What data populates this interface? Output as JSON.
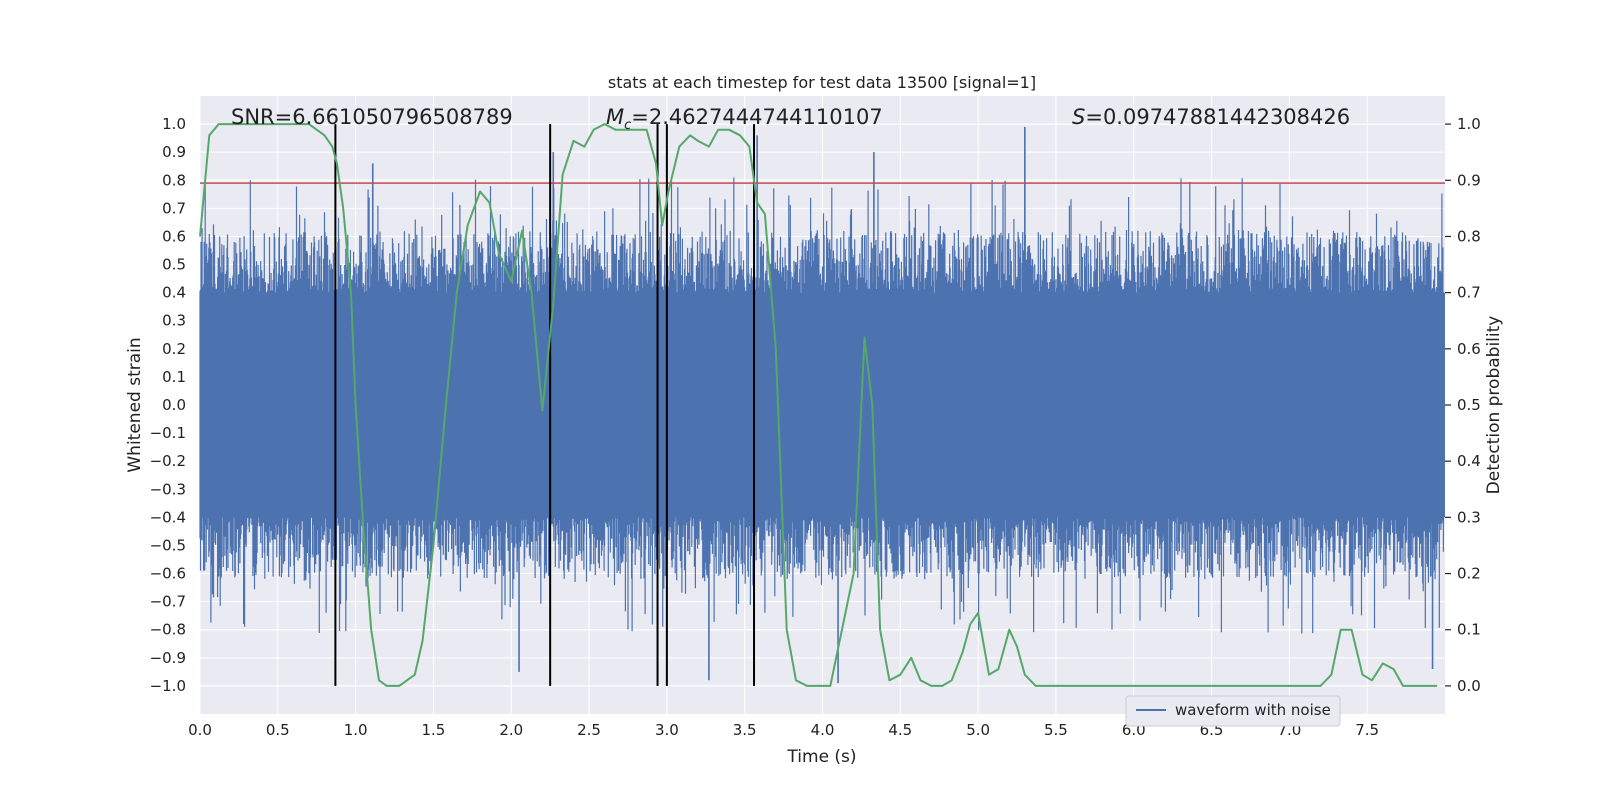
{
  "chart_data": {
    "type": "line",
    "title": "stats at each timestep for test data 13500 [signal=1]",
    "xlabel": "Time (s)",
    "ylabel": "Whitened strain",
    "y2label": "Detection probability",
    "xlim": [
      0.0,
      8.0
    ],
    "ylim": [
      -1.1,
      1.1
    ],
    "y2lim": [
      -0.05,
      1.05
    ],
    "xticks": [
      0.0,
      0.5,
      1.0,
      1.5,
      2.0,
      2.5,
      3.0,
      3.5,
      4.0,
      4.5,
      5.0,
      5.5,
      6.0,
      6.5,
      7.0,
      7.5
    ],
    "xtick_labels": [
      "0.0",
      "0.5",
      "1.0",
      "1.5",
      "2.0",
      "2.5",
      "3.0",
      "3.5",
      "4.0",
      "4.5",
      "5.0",
      "5.5",
      "6.0",
      "6.5",
      "7.0",
      "7.5"
    ],
    "yticks": [
      1.0,
      0.9,
      0.8,
      0.7,
      0.6,
      0.5,
      0.4,
      0.3,
      0.2,
      0.1,
      0.0,
      -0.1,
      -0.2,
      -0.3,
      -0.4,
      -0.5,
      -0.6,
      -0.7,
      -0.8,
      -0.9,
      -1.0
    ],
    "ytick_labels": [
      "1.0",
      "0.9",
      "0.8",
      "0.7",
      "0.6",
      "0.5",
      "0.4",
      "0.3",
      "0.2",
      "0.1",
      "0.0",
      "−0.1",
      "−0.2",
      "−0.3",
      "−0.4",
      "−0.5",
      "−0.6",
      "−0.7",
      "−0.8",
      "−0.9",
      "−1.0"
    ],
    "y2ticks": [
      1.0,
      0.9,
      0.8,
      0.7,
      0.6,
      0.5,
      0.4,
      0.3,
      0.2,
      0.1,
      0.0
    ],
    "y2tick_labels": [
      "1.0",
      "0.9",
      "0.8",
      "0.7",
      "0.6",
      "0.5",
      "0.4",
      "0.3",
      "0.2",
      "0.1",
      "0.0"
    ],
    "grid": true,
    "stats": {
      "snr": "SNR=6.661050796508789",
      "mc_symbol": "M",
      "mc_subscript": "c",
      "mc_value": "=2.4627444744110107",
      "s_symbol": "S",
      "s_value": "=0.09747881442308426"
    },
    "threshold": {
      "value": 0.79,
      "color": "#c44e52"
    },
    "vertical_markers": {
      "x": [
        0.87,
        2.25,
        2.94,
        3.0,
        3.56
      ],
      "ymin": -1.0,
      "ymax": 1.0,
      "color": "#000000"
    },
    "series": [
      {
        "name": "waveform with noise",
        "axis": "left",
        "color": "#4c72b0",
        "description": "dense whitened-strain noise trace, core band between -0.4 and 0.4 with spikes to about +/-0.8",
        "core_amplitude": 0.4,
        "sample_rate_hz": 1024,
        "peak_spikes": [
          {
            "x": 5.3,
            "y": 0.99
          },
          {
            "x": 2.27,
            "y": 0.9
          },
          {
            "x": 3.58,
            "y": 0.96
          },
          {
            "x": 4.33,
            "y": 0.9
          },
          {
            "x": 1.11,
            "y": 0.86
          },
          {
            "x": 4.1,
            "y": -0.99
          },
          {
            "x": 3.27,
            "y": -0.98
          },
          {
            "x": 7.92,
            "y": -0.94
          },
          {
            "x": 2.05,
            "y": -0.95
          }
        ]
      },
      {
        "name": "detection probability",
        "axis": "right",
        "color": "#55a868",
        "x": [
          0.0,
          0.06,
          0.12,
          0.2,
          0.3,
          0.4,
          0.5,
          0.6,
          0.7,
          0.75,
          0.8,
          0.85,
          0.88,
          0.92,
          0.97,
          1.0,
          1.05,
          1.1,
          1.15,
          1.2,
          1.28,
          1.33,
          1.38,
          1.43,
          1.5,
          1.58,
          1.65,
          1.72,
          1.8,
          1.86,
          1.92,
          2.0,
          2.07,
          2.13,
          2.2,
          2.27,
          2.33,
          2.4,
          2.47,
          2.53,
          2.6,
          2.67,
          2.73,
          2.8,
          2.87,
          2.93,
          2.97,
          3.01,
          3.08,
          3.15,
          3.2,
          3.27,
          3.33,
          3.4,
          3.47,
          3.53,
          3.58,
          3.63,
          3.7,
          3.77,
          3.83,
          3.9,
          3.97,
          4.05,
          4.2,
          4.27,
          4.32,
          4.37,
          4.43,
          4.5,
          4.57,
          4.63,
          4.7,
          4.77,
          4.83,
          4.9,
          4.95,
          5.0,
          5.07,
          5.13,
          5.2,
          5.25,
          5.3,
          5.37,
          5.45,
          5.6,
          6.0,
          6.5,
          7.0,
          7.2,
          7.27,
          7.33,
          7.4,
          7.47,
          7.53,
          7.6,
          7.67,
          7.73,
          7.8,
          7.95
        ],
        "values": [
          0.8,
          0.98,
          1.0,
          1.0,
          1.0,
          1.0,
          1.0,
          1.0,
          1.0,
          0.99,
          0.98,
          0.96,
          0.93,
          0.85,
          0.7,
          0.5,
          0.28,
          0.1,
          0.01,
          0.0,
          0.0,
          0.01,
          0.02,
          0.08,
          0.25,
          0.5,
          0.7,
          0.82,
          0.88,
          0.86,
          0.77,
          0.72,
          0.81,
          0.7,
          0.49,
          0.68,
          0.91,
          0.97,
          0.96,
          0.99,
          1.0,
          0.99,
          0.99,
          0.99,
          0.99,
          0.93,
          0.82,
          0.88,
          0.96,
          0.98,
          0.97,
          0.96,
          0.99,
          0.99,
          0.98,
          0.96,
          0.86,
          0.84,
          0.6,
          0.1,
          0.01,
          0.0,
          0.0,
          0.0,
          0.2,
          0.62,
          0.5,
          0.1,
          0.01,
          0.02,
          0.05,
          0.01,
          0.0,
          0.0,
          0.01,
          0.06,
          0.11,
          0.13,
          0.02,
          0.03,
          0.1,
          0.07,
          0.02,
          0.0,
          0.0,
          0.0,
          0.0,
          0.0,
          0.0,
          0.0,
          0.02,
          0.1,
          0.1,
          0.02,
          0.01,
          0.04,
          0.03,
          0.0,
          0.0,
          0.0
        ]
      }
    ],
    "legend": {
      "label": "waveform with noise",
      "placement": "bottom-right",
      "color": "#4c72b0"
    }
  }
}
